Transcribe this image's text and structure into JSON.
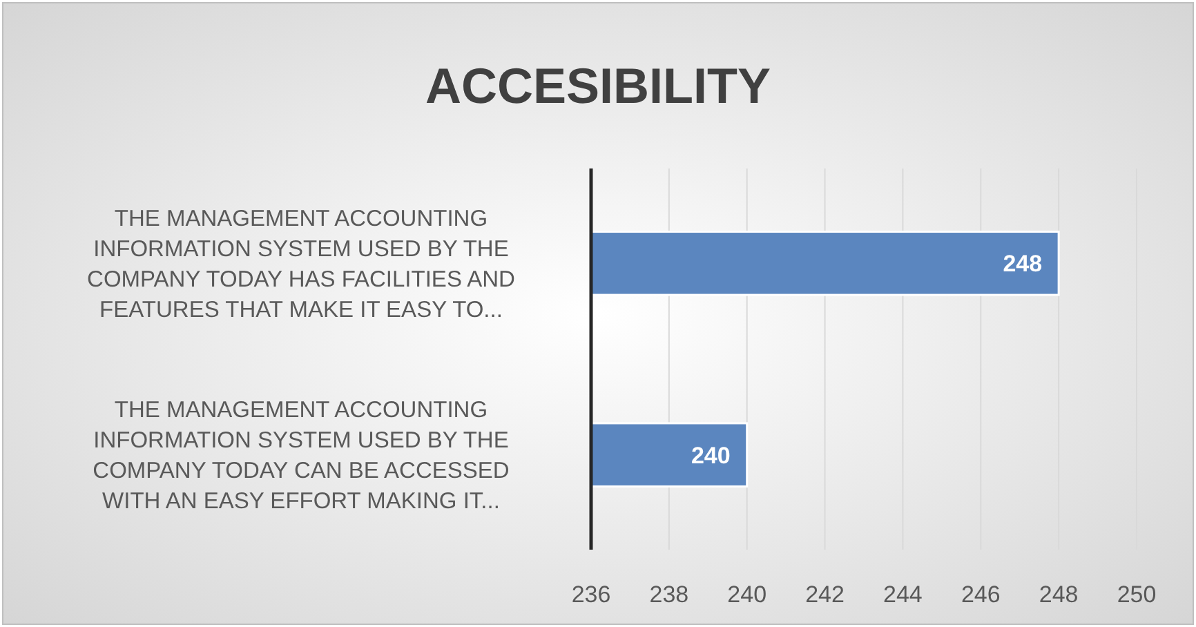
{
  "chart_data": {
    "type": "bar",
    "orientation": "horizontal",
    "title": "ACCESIBILITY",
    "categories": [
      "THE MANAGEMENT ACCOUNTING INFORMATION SYSTEM USED BY THE COMPANY TODAY HAS FACILITIES AND FEATURES THAT MAKE IT EASY TO...",
      "THE MANAGEMENT ACCOUNTING INFORMATION SYSTEM USED BY THE COMPANY TODAY CAN BE ACCESSED WITH AN EASY EFFORT MAKING IT..."
    ],
    "values": [
      248,
      240
    ],
    "color": "#5b86bf",
    "xlim": [
      236,
      250
    ],
    "xticks": [
      236,
      238,
      240,
      242,
      244,
      246,
      248,
      250
    ],
    "grid": "x",
    "data_labels": true
  }
}
